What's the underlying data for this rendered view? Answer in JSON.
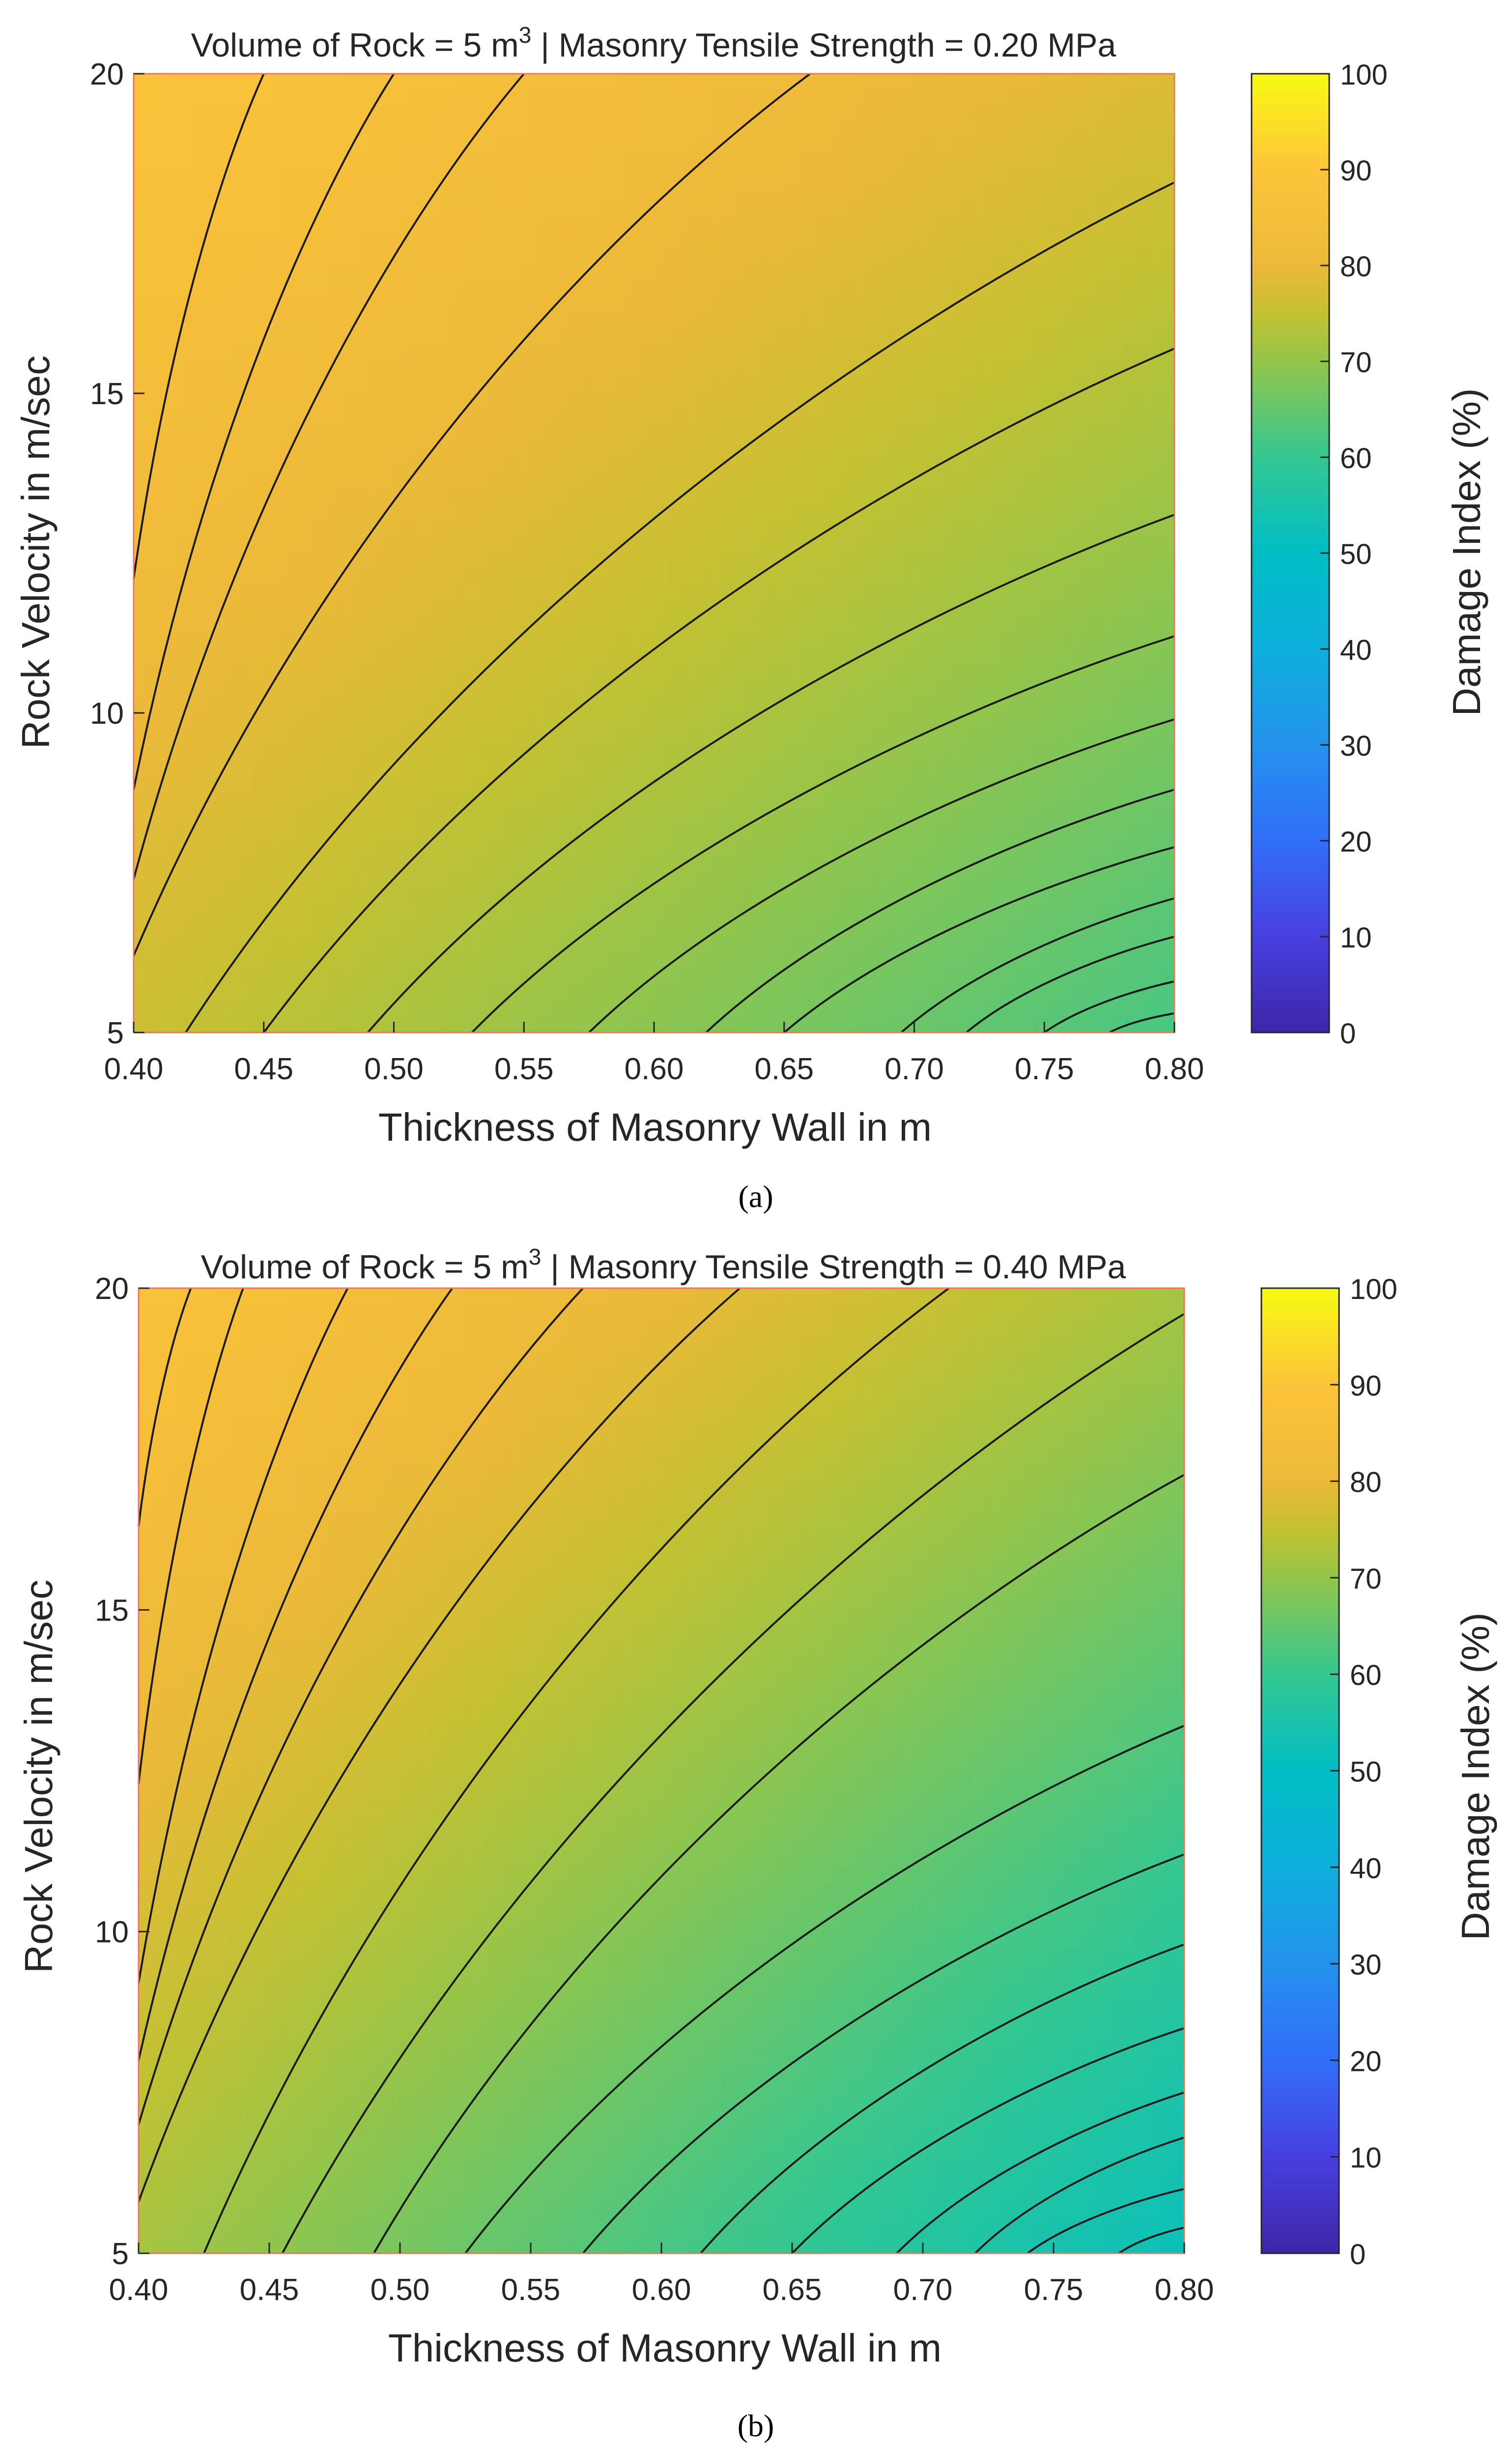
{
  "chart_data": [
    {
      "type": "contour",
      "panel_label": "(a)",
      "title_prefix": "Volume of Rock = 5 m",
      "title_superscript": "3",
      "title_suffix": " | Masonry Tensile Strength = 0.20 MPa",
      "xlabel": "Thickness of Masonry Wall in m",
      "ylabel": "Rock Velocity in m/sec",
      "xlim": [
        0.4,
        0.8
      ],
      "ylim": [
        5,
        20
      ],
      "xticks": [
        "0.40",
        "0.45",
        "0.50",
        "0.55",
        "0.60",
        "0.65",
        "0.70",
        "0.75",
        "0.80"
      ],
      "yticks": [
        "5",
        "10",
        "15",
        "20"
      ],
      "colorbar_label": "Damage Index (%)",
      "colorbar_ticks": [
        "0",
        "10",
        "20",
        "30",
        "40",
        "50",
        "60",
        "70",
        "80",
        "90",
        "100"
      ],
      "colorbar_range": [
        0,
        100
      ],
      "corner_values": {
        "x0_y0": 76,
        "x1_y0": 62,
        "x0_y1": 89,
        "x1_y1": 78
      },
      "contour_levels": [
        60,
        62,
        64,
        66,
        68,
        70,
        72,
        74,
        76,
        78,
        80,
        82,
        84,
        86,
        88
      ],
      "contour_lines": [
        {
          "level_index": 0,
          "points": [
            [
              0.775,
              5
            ],
            [
              0.8,
              5.3
            ]
          ]
        },
        {
          "level_index": 1,
          "points": [
            [
              0.75,
              5
            ],
            [
              0.8,
              5.8
            ]
          ]
        },
        {
          "level_index": 2,
          "points": [
            [
              0.72,
              5
            ],
            [
              0.8,
              6.5
            ]
          ]
        },
        {
          "level_index": 3,
          "points": [
            [
              0.695,
              5
            ],
            [
              0.8,
              7.1
            ]
          ]
        },
        {
          "level_index": 4,
          "points": [
            [
              0.65,
              5
            ],
            [
              0.8,
              7.9
            ]
          ]
        },
        {
          "level_index": 5,
          "points": [
            [
              0.62,
              5
            ],
            [
              0.8,
              8.8
            ]
          ]
        },
        {
          "level_index": 6,
          "points": [
            [
              0.575,
              5
            ],
            [
              0.8,
              9.9
            ]
          ]
        },
        {
          "level_index": 7,
          "points": [
            [
              0.53,
              5
            ],
            [
              0.8,
              11.2
            ]
          ]
        },
        {
          "level_index": 8,
          "points": [
            [
              0.49,
              5
            ],
            [
              0.8,
              13.1
            ]
          ]
        },
        {
          "level_index": 9,
          "points": [
            [
              0.45,
              5
            ],
            [
              0.8,
              15.7
            ]
          ]
        },
        {
          "level_index": 10,
          "points": [
            [
              0.42,
              5
            ],
            [
              0.8,
              18.3
            ]
          ]
        },
        {
          "level_index": 11,
          "points": [
            [
              0.4,
              6.2
            ],
            [
              0.66,
              20
            ]
          ]
        },
        {
          "level_index": 12,
          "points": [
            [
              0.4,
              7.4
            ],
            [
              0.55,
              20
            ]
          ]
        },
        {
          "level_index": 13,
          "points": [
            [
              0.4,
              8.8
            ],
            [
              0.5,
              20
            ]
          ]
        },
        {
          "level_index": 14,
          "points": [
            [
              0.4,
              12.1
            ],
            [
              0.45,
              20
            ]
          ]
        }
      ]
    },
    {
      "type": "contour",
      "panel_label": "(b)",
      "title_prefix": "Volume of Rock = 5 m",
      "title_superscript": "3",
      "title_suffix": " | Masonry Tensile Strength = 0.40 MPa",
      "xlabel": "Thickness of Masonry Wall in m",
      "ylabel": "Rock Velocity in m/sec",
      "xlim": [
        0.4,
        0.8
      ],
      "ylim": [
        5,
        20
      ],
      "xticks": [
        "0.40",
        "0.45",
        "0.50",
        "0.55",
        "0.60",
        "0.65",
        "0.70",
        "0.75",
        "0.80"
      ],
      "yticks": [
        "5",
        "10",
        "15",
        "20"
      ],
      "colorbar_label": "Damage Index (%)",
      "colorbar_ticks": [
        "0",
        "10",
        "20",
        "30",
        "40",
        "50",
        "60",
        "70",
        "80",
        "90",
        "100"
      ],
      "colorbar_range": [
        0,
        100
      ],
      "corner_values": {
        "x0_y0": 72,
        "x1_y0": 52,
        "x0_y1": 88,
        "x1_y1": 72
      },
      "contour_levels": [
        54,
        56,
        58,
        60,
        62,
        64,
        66,
        68,
        70,
        72,
        74,
        76,
        78,
        80,
        82,
        84,
        86
      ],
      "contour_lines": [
        {
          "level_index": 0,
          "points": [
            [
              0.775,
              5
            ],
            [
              0.8,
              5.4
            ]
          ]
        },
        {
          "level_index": 1,
          "points": [
            [
              0.74,
              5
            ],
            [
              0.8,
              6.0
            ]
          ]
        },
        {
          "level_index": 2,
          "points": [
            [
              0.72,
              5
            ],
            [
              0.8,
              6.8
            ]
          ]
        },
        {
          "level_index": 3,
          "points": [
            [
              0.69,
              5
            ],
            [
              0.8,
              7.5
            ]
          ]
        },
        {
          "level_index": 4,
          "points": [
            [
              0.65,
              5
            ],
            [
              0.8,
              8.5
            ]
          ]
        },
        {
          "level_index": 5,
          "points": [
            [
              0.615,
              5
            ],
            [
              0.8,
              9.8
            ]
          ]
        },
        {
          "level_index": 6,
          "points": [
            [
              0.57,
              5
            ],
            [
              0.8,
              11.2
            ]
          ]
        },
        {
          "level_index": 7,
          "points": [
            [
              0.525,
              5
            ],
            [
              0.8,
              13.2
            ]
          ]
        },
        {
          "level_index": 8,
          "points": [
            [
              0.49,
              5
            ],
            [
              0.8,
              17.1
            ]
          ]
        },
        {
          "level_index": 9,
          "points": [
            [
              0.455,
              5
            ],
            [
              0.8,
              19.6
            ]
          ]
        },
        {
          "level_index": 10,
          "points": [
            [
              0.425,
              5
            ],
            [
              0.71,
              20
            ]
          ]
        },
        {
          "level_index": 11,
          "points": [
            [
              0.4,
              5.8
            ],
            [
              0.63,
              20
            ]
          ]
        },
        {
          "level_index": 12,
          "points": [
            [
              0.4,
              7.0
            ],
            [
              0.57,
              20
            ]
          ]
        },
        {
          "level_index": 13,
          "points": [
            [
              0.4,
              8.0
            ],
            [
              0.52,
              20
            ]
          ]
        },
        {
          "level_index": 14,
          "points": [
            [
              0.4,
              9.2
            ],
            [
              0.48,
              20
            ]
          ]
        },
        {
          "level_index": 15,
          "points": [
            [
              0.4,
              12.3
            ],
            [
              0.44,
              20
            ]
          ]
        },
        {
          "level_index": 16,
          "points": [
            [
              0.4,
              16.3
            ],
            [
              0.42,
              20
            ]
          ]
        }
      ]
    }
  ]
}
